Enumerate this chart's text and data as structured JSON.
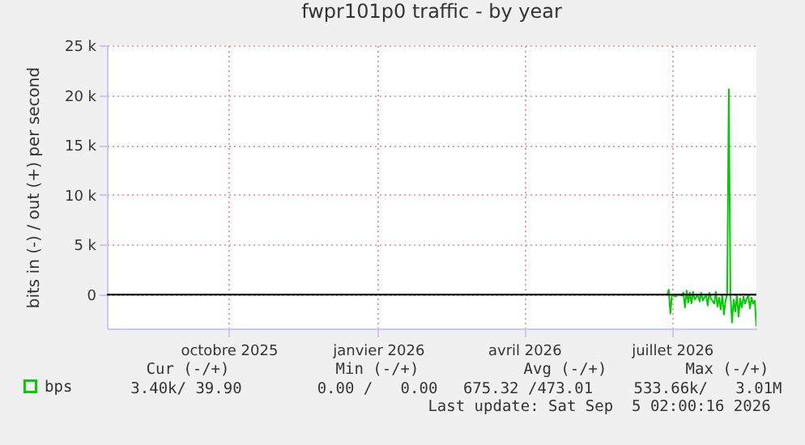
{
  "chart_data": {
    "type": "line",
    "title": "fwpr101p0 traffic - by year",
    "ylabel": "bits in (-) / out (+) per second",
    "xlim": [
      "2025-08-01",
      "2026-09-05"
    ],
    "xticks": [
      {
        "value": "2025-10-15",
        "label": "octobre 2025"
      },
      {
        "value": "2026-01-15",
        "label": "janvier 2026"
      },
      {
        "value": "2026-04-15",
        "label": "avril 2026"
      },
      {
        "value": "2026-07-15",
        "label": "juillet 2026"
      }
    ],
    "ylim": [
      -3400,
      25000
    ],
    "yticks": [
      0,
      {
        "value": 5000,
        "label": "5 k"
      },
      {
        "value": 10000,
        "label": "10 k"
      },
      {
        "value": 15000,
        "label": "15 k"
      },
      {
        "value": 20000,
        "label": "20 k"
      },
      {
        "value": 25000,
        "label": "25 k"
      }
    ],
    "grid": true,
    "legend": "bottom left",
    "x": [
      "2026-07-12",
      "2026-07-13",
      "2026-07-14",
      "2026-07-15",
      "2026-07-17",
      "2026-07-19",
      "2026-07-21",
      "2026-07-22",
      "2026-07-23",
      "2026-07-24",
      "2026-07-25",
      "2026-07-26",
      "2026-07-27",
      "2026-07-28",
      "2026-07-29",
      "2026-07-31",
      "2026-08-01",
      "2026-08-02",
      "2026-08-03",
      "2026-08-05",
      "2026-08-06",
      "2026-08-07",
      "2026-08-08",
      "2026-08-10",
      "2026-08-11",
      "2026-08-12",
      "2026-08-13",
      "2026-08-14",
      "2026-08-15",
      "2026-08-16",
      "2026-08-17",
      "2026-08-18",
      "2026-08-19",
      "2026-08-20",
      "2026-08-21",
      "2026-08-22",
      "2026-08-23",
      "2026-08-24",
      "2026-08-25",
      "2026-08-26",
      "2026-08-27",
      "2026-08-28",
      "2026-08-29",
      "2026-08-31",
      "2026-09-01",
      "2026-09-02",
      "2026-09-03",
      "2026-09-04",
      "2026-09-05"
    ],
    "series": [
      {
        "name": "bps",
        "color": "#00cc00",
        "values": [
          0,
          500,
          -1900,
          0,
          -200,
          0,
          -100,
          200,
          -1300,
          400,
          -800,
          200,
          -900,
          300,
          -500,
          0,
          -700,
          200,
          -600,
          0,
          -1100,
          200,
          -400,
          -900,
          300,
          -1200,
          -300,
          -1500,
          0,
          -2000,
          -600,
          0,
          20600,
          0,
          -2800,
          -500,
          -1700,
          0,
          -2200,
          -400,
          -1300,
          -200,
          -900,
          0,
          -1400,
          -300,
          -900,
          -600,
          -3200
        ]
      }
    ],
    "ref_lines": [
      {
        "axis": "y",
        "value": 0,
        "color": "#000000"
      }
    ],
    "annotations": [
      "Cur (-/+)",
      "Min (-/+)",
      "Avg (-/+)",
      "Max (-/+)",
      "3.40k/ 39.90",
      "0.00 /   0.00",
      "675.32 /473.01",
      "533.66k/   3.01M",
      "Last update: Sat Sep  5 02:00:16 2026"
    ]
  }
}
